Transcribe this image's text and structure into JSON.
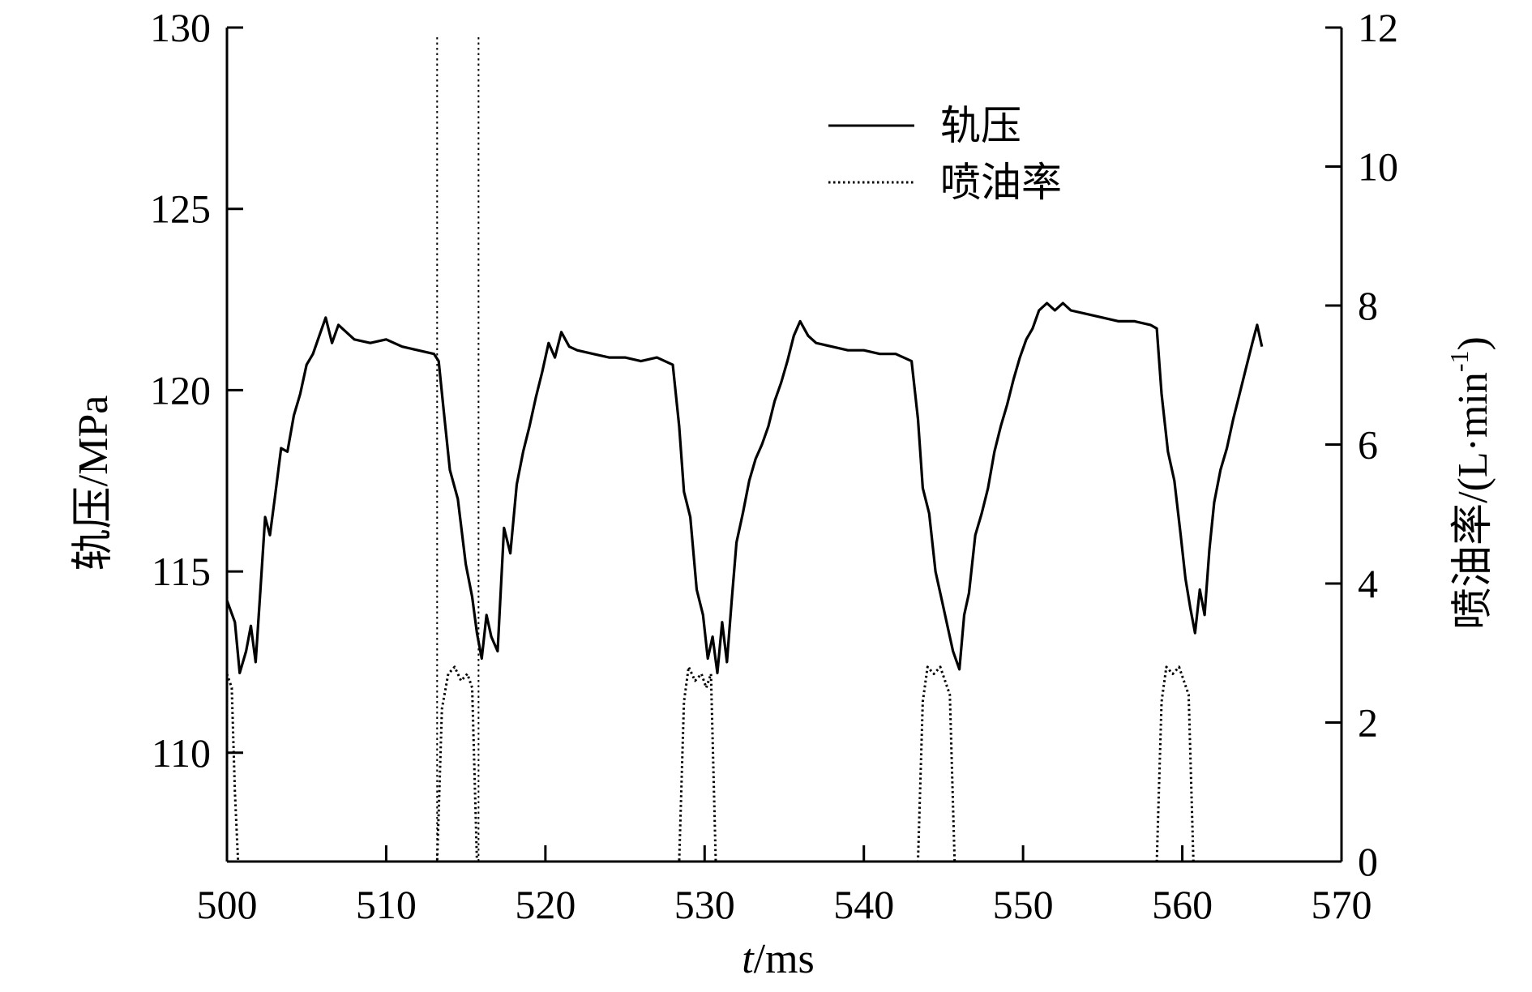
{
  "chart_data": {
    "type": "line",
    "title": "",
    "xlabel": {
      "italic": "t",
      "rest": "/ms"
    },
    "ylabel_left": "轨压/MPa",
    "ylabel_right": {
      "main": "喷油率/(L·min",
      "sup": "-1",
      "close": ")"
    },
    "xlim": [
      500,
      570
    ],
    "ylim_left": [
      107,
      130
    ],
    "ylim_right": [
      0,
      12
    ],
    "x_ticks": [
      500,
      510,
      520,
      530,
      540,
      550,
      560,
      570
    ],
    "y_left_ticks": [
      110,
      115,
      120,
      125,
      130
    ],
    "y_right_ticks": [
      0,
      2,
      4,
      6,
      8,
      10,
      12
    ],
    "grid": false,
    "legend_position": "top-center",
    "reference_lines_x": [
      513.2,
      515.8
    ],
    "series": [
      {
        "name": "轨压",
        "axis": "left",
        "style": "solid",
        "x": [
          500,
          500.5,
          500.8,
          501.2,
          501.5,
          501.8,
          502.1,
          502.4,
          502.7,
          503.0,
          503.4,
          503.8,
          504.2,
          504.6,
          505.0,
          505.4,
          505.8,
          506.2,
          506.6,
          507.0,
          508,
          509,
          510,
          511,
          512,
          513.0,
          513.3,
          513.6,
          514.0,
          514.5,
          515.0,
          515.4,
          515.7,
          516.0,
          516.3,
          516.6,
          517.0,
          517.4,
          517.8,
          518.2,
          518.6,
          519.0,
          519.4,
          519.8,
          520.2,
          520.6,
          521.0,
          521.5,
          522,
          523,
          524,
          525,
          526,
          527,
          528.0,
          528.4,
          528.7,
          529.1,
          529.5,
          529.9,
          530.2,
          530.5,
          530.8,
          531.1,
          531.4,
          531.7,
          532.0,
          532.4,
          532.8,
          533.2,
          533.6,
          534.0,
          534.4,
          534.8,
          535.2,
          535.6,
          536.0,
          536.5,
          537,
          538,
          539,
          540,
          541,
          542,
          543.0,
          543.4,
          543.7,
          544.1,
          544.5,
          544.9,
          545.3,
          545.6,
          546.0,
          546.3,
          546.6,
          547.0,
          547.4,
          547.8,
          548.2,
          548.6,
          549.0,
          549.4,
          549.8,
          550.2,
          550.6,
          551.0,
          551.5,
          552.0,
          552.5,
          553,
          554,
          555,
          556,
          557,
          558.0,
          558.4,
          558.7,
          559.1,
          559.5,
          559.9,
          560.2,
          560.5,
          560.8,
          561.1,
          561.4,
          561.7,
          562.0,
          562.4,
          562.8,
          563.2,
          563.6,
          564.0,
          564.4,
          564.7,
          565.0
        ],
        "y": [
          114.2,
          113.6,
          112.2,
          112.8,
          113.5,
          112.5,
          114.5,
          116.5,
          116.0,
          117.0,
          118.4,
          118.3,
          119.3,
          119.9,
          120.7,
          121.0,
          121.5,
          122.0,
          121.3,
          121.8,
          121.4,
          121.3,
          121.4,
          121.2,
          121.1,
          121.0,
          120.8,
          119.5,
          117.8,
          117.0,
          115.2,
          114.3,
          113.3,
          112.6,
          113.8,
          113.2,
          112.8,
          116.2,
          115.5,
          117.4,
          118.3,
          119.0,
          119.8,
          120.5,
          121.3,
          120.9,
          121.6,
          121.2,
          121.1,
          121.0,
          120.9,
          120.9,
          120.8,
          120.9,
          120.7,
          119.0,
          117.2,
          116.5,
          114.5,
          113.8,
          112.6,
          113.2,
          112.2,
          113.6,
          112.5,
          114.2,
          115.8,
          116.6,
          117.5,
          118.1,
          118.5,
          119.0,
          119.7,
          120.2,
          120.8,
          121.5,
          121.9,
          121.5,
          121.3,
          121.2,
          121.1,
          121.1,
          121.0,
          121.0,
          120.8,
          119.2,
          117.3,
          116.6,
          115.0,
          114.2,
          113.4,
          112.8,
          112.3,
          113.8,
          114.4,
          116.0,
          116.6,
          117.3,
          118.3,
          119.0,
          119.6,
          120.3,
          120.9,
          121.4,
          121.7,
          122.2,
          122.4,
          122.2,
          122.4,
          122.2,
          122.1,
          122.0,
          121.9,
          121.9,
          121.8,
          121.7,
          119.9,
          118.3,
          117.5,
          116.0,
          114.8,
          114.0,
          113.3,
          114.5,
          113.8,
          115.6,
          116.9,
          117.8,
          118.4,
          119.2,
          119.9,
          120.6,
          121.3,
          121.8,
          121.2
        ]
      },
      {
        "name": "喷油率",
        "axis": "right",
        "style": "dotted",
        "x": [
          500,
          500.3,
          500.5,
          500.7,
          500.9,
          512.9,
          513.2,
          513.5,
          513.9,
          514.3,
          514.7,
          515.1,
          515.4,
          515.7,
          516.0,
          528.1,
          528.4,
          528.7,
          529.0,
          529.4,
          529.8,
          530.1,
          530.4,
          530.7,
          531.0,
          543.1,
          543.4,
          543.7,
          544.0,
          544.4,
          544.8,
          545.1,
          545.4,
          545.7,
          546.0,
          558.1,
          558.4,
          558.7,
          559.0,
          559.4,
          559.8,
          560.1,
          560.4,
          560.7,
          561.0,
          565
        ],
        "y": [
          2.7,
          2.5,
          1.0,
          0,
          0,
          0,
          0,
          2.2,
          2.7,
          2.8,
          2.6,
          2.7,
          2.5,
          0,
          0,
          0,
          0,
          2.3,
          2.8,
          2.6,
          2.7,
          2.5,
          2.7,
          0,
          0,
          0,
          0,
          2.3,
          2.8,
          2.7,
          2.8,
          2.6,
          2.4,
          0,
          0,
          0,
          0,
          2.3,
          2.8,
          2.7,
          2.8,
          2.6,
          2.4,
          0,
          0,
          0
        ]
      }
    ]
  }
}
